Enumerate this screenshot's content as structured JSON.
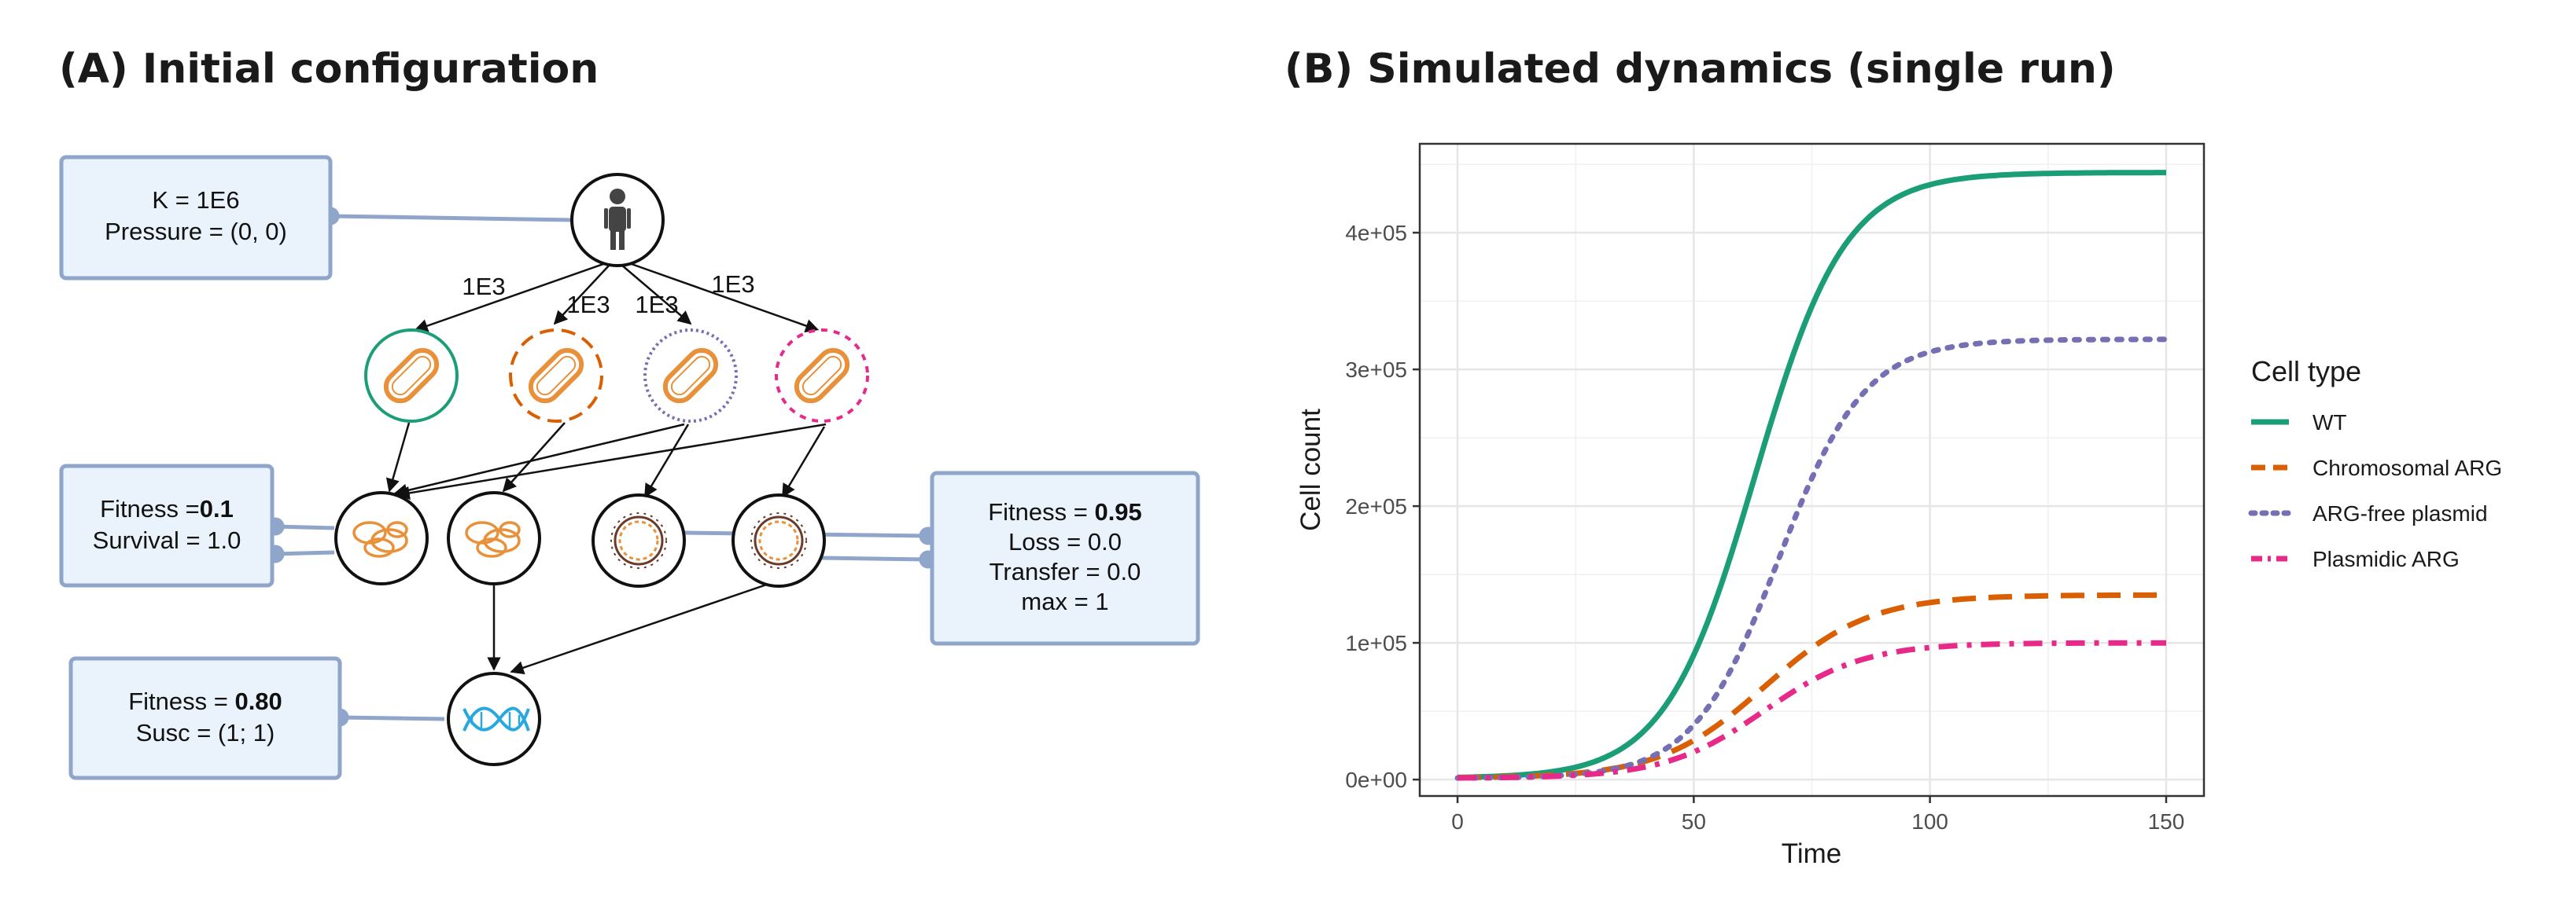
{
  "panel_a": {
    "title": "(A) Initial configuration",
    "env_box": {
      "line1": "K = 1E6",
      "line2": "Pressure = (0, 0)"
    },
    "edge_labels": [
      "1E3",
      "1E3",
      "1E3",
      "1E3"
    ],
    "chrom_box": {
      "line1_prefix": "Fitness =",
      "line1_value": "0.1",
      "line2": "Survival = 1.0"
    },
    "plasmid_box": {
      "line1_prefix": "Fitness = ",
      "line1_value": "0.95",
      "line2": "Loss = 0.0",
      "line3": "Transfer = 0.0",
      "line4": "max = 1"
    },
    "gene_box": {
      "line1_prefix": "Fitness = ",
      "line1_value": "0.80",
      "line2": "Susc = (1; 1)"
    },
    "icons": {
      "host": "person-icon",
      "cells": [
        "bacterium-icon",
        "bacterium-icon",
        "bacterium-icon",
        "bacterium-icon"
      ],
      "chromosomes": [
        "chromosome-icon",
        "chromosome-icon"
      ],
      "plasmids": [
        "plasmid-icon",
        "plasmid-icon"
      ],
      "gene": "dna-icon"
    },
    "colors": {
      "wt": "#1b9e77",
      "chrom": "#d95f02",
      "free": "#7570b3",
      "plasmidic": "#e7298a",
      "box_fill": "#eaf2fb",
      "box_stroke": "#8fa5c9",
      "bacterium": "#e8913a"
    }
  },
  "panel_b": {
    "title": "(B) Simulated dynamics (single run)"
  },
  "chart_data": {
    "type": "line",
    "xlabel": "Time",
    "ylabel": "Cell count",
    "xlim": [
      -8,
      158
    ],
    "ylim": [
      -12000,
      465000
    ],
    "x_ticks": [
      0,
      50,
      100,
      150
    ],
    "y_ticks": [
      0,
      100000,
      200000,
      300000,
      400000
    ],
    "y_tick_labels": [
      "0e+00",
      "1e+05",
      "2e+05",
      "3e+05",
      "4e+05"
    ],
    "grid": true,
    "legend": {
      "title": "Cell type",
      "position": "right"
    },
    "series": [
      {
        "name": "WT",
        "color": "#1b9e77",
        "dash": "solid",
        "final": 444000,
        "midpoint": 63,
        "rate": 0.105,
        "start": 1000
      },
      {
        "name": "Chromosomal ARG",
        "color": "#d95f02",
        "dash": "dashed",
        "final": 135000,
        "midpoint": 65,
        "rate": 0.09,
        "start": 1000
      },
      {
        "name": "ARG-free plasmid",
        "color": "#7570b3",
        "dash": "dotted",
        "final": 322000,
        "midpoint": 68,
        "rate": 0.11,
        "start": 1000
      },
      {
        "name": "Plasmidic ARG",
        "color": "#e7298a",
        "dash": "dashdot",
        "final": 100000,
        "midpoint": 65,
        "rate": 0.095,
        "start": 1000
      }
    ]
  }
}
